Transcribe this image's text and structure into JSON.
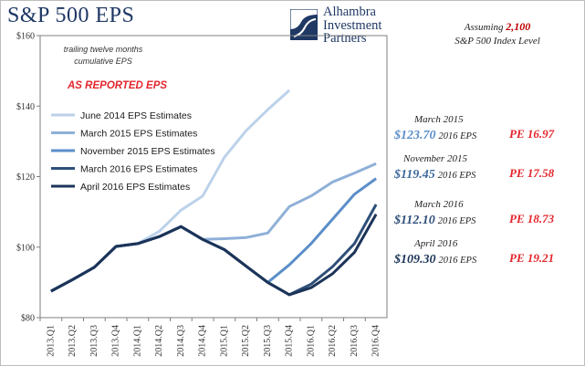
{
  "header": {
    "title": "S&P 500 EPS",
    "logo_lines": [
      "Alhambra",
      "Investment",
      "Partners"
    ],
    "assumption_prefix": "Assuming ",
    "assumption_value": "2,100",
    "assumption_suffix": "S&P 500 Index Level"
  },
  "chart_data": {
    "type": "line",
    "title": "S&P 500 EPS",
    "annotations": [
      "trailing twelve months",
      "cumulative EPS",
      "AS REPORTED EPS"
    ],
    "ylim": [
      80,
      160
    ],
    "yticks": [
      80,
      100,
      120,
      140,
      160
    ],
    "ytick_labels": [
      "$80",
      "$100",
      "$120",
      "$140",
      "$160"
    ],
    "categories": [
      "2013.Q1",
      "2013.Q2",
      "2013.Q3",
      "2013.Q4",
      "2014.Q1",
      "2014.Q2",
      "2014.Q3",
      "2014.Q4",
      "2015.Q1",
      "2015.Q2",
      "2015.Q3",
      "2015.Q4",
      "2016.Q1",
      "2016.Q2",
      "2016.Q3",
      "2016.Q4"
    ],
    "grid": false,
    "legend_position": "upper-left",
    "series": [
      {
        "name": "June 2014 EPS Estimates",
        "color": "#bcd2ea",
        "values": [
          87.5,
          90.8,
          94.3,
          100.2,
          101,
          104.5,
          110.5,
          114.5,
          125.5,
          133,
          139,
          144.5,
          null,
          null,
          null,
          null
        ]
      },
      {
        "name": "March 2015 EPS Estimates",
        "color": "#8fb0d8",
        "values": [
          87.5,
          90.8,
          94.3,
          100.2,
          101,
          103,
          105.8,
          102.2,
          102.4,
          102.7,
          104,
          111.5,
          114.5,
          118.5,
          121,
          123.7
        ]
      },
      {
        "name": "November 2015 EPS Estimates",
        "color": "#5b8ec9",
        "values": [
          87.5,
          90.8,
          94.3,
          100.2,
          101,
          103,
          105.8,
          102.2,
          99.3,
          94.6,
          90,
          95,
          101,
          108,
          115,
          119.45
        ]
      },
      {
        "name": "March 2016 EPS Estimates",
        "color": "#2e4f78",
        "values": [
          87.5,
          90.8,
          94.3,
          100.2,
          101,
          103,
          105.8,
          102.2,
          99.3,
          94.6,
          90,
          86.5,
          89.5,
          94.5,
          101,
          112.1
        ]
      },
      {
        "name": "April 2016 EPS Estimates",
        "color": "#1c3458",
        "values": [
          87.5,
          90.8,
          94.3,
          100.2,
          101,
          103,
          105.8,
          102.2,
          99.3,
          94.6,
          90,
          86.5,
          88.5,
          92.5,
          98.5,
          109.3
        ]
      }
    ]
  },
  "estimates": [
    {
      "period": "March 2015",
      "value": "$123.70",
      "label": "2016 EPS",
      "pe": "PE 16.97",
      "color": "#5b8ec9"
    },
    {
      "period": "November 2015",
      "value": "$119.45",
      "label": "2016 EPS",
      "pe": "PE 17.58",
      "color": "#3f6a9d"
    },
    {
      "period": "March 2016",
      "value": "$112.10",
      "label": "2016 EPS",
      "pe": "PE 18.73",
      "color": "#2e4f78"
    },
    {
      "period": "April 2016",
      "value": "$109.30",
      "label": "2016 EPS",
      "pe": "PE 19.21",
      "color": "#1c3458"
    }
  ]
}
